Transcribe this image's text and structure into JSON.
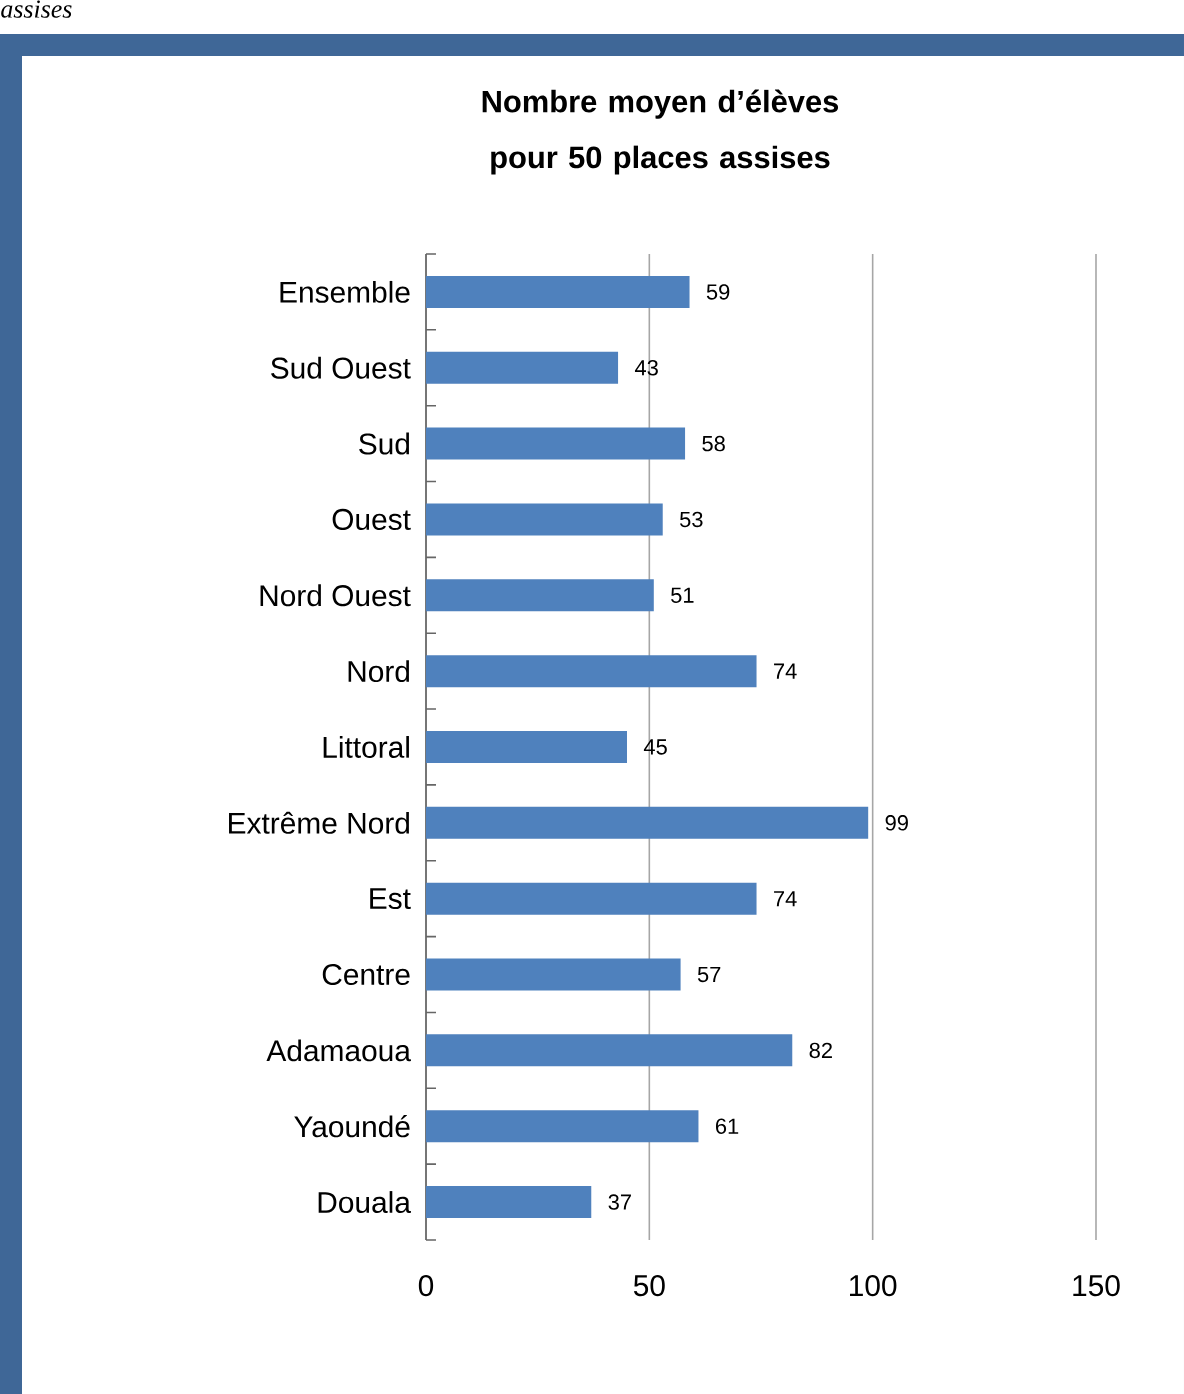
{
  "chart_data": {
    "type": "bar",
    "orientation": "horizontal",
    "title": "Nombre moyen d’élèves pour 50 places assises",
    "annotations": [
      "assises"
    ],
    "categories": [
      "Ensemble",
      "Sud Ouest",
      "Sud",
      "Ouest",
      "Nord Ouest",
      "Nord",
      "Littoral",
      "Extrême Nord",
      "Est",
      "Centre",
      "Adamaoua",
      "Yaoundé",
      "Douala"
    ],
    "values": [
      59,
      43,
      58,
      53,
      51,
      74,
      45,
      99,
      74,
      57,
      82,
      61,
      37
    ],
    "color": "#4f81bd",
    "xlim": [
      0,
      150
    ],
    "xticks": [
      0,
      50,
      100,
      150
    ],
    "grid": "x",
    "data_labels": true
  }
}
